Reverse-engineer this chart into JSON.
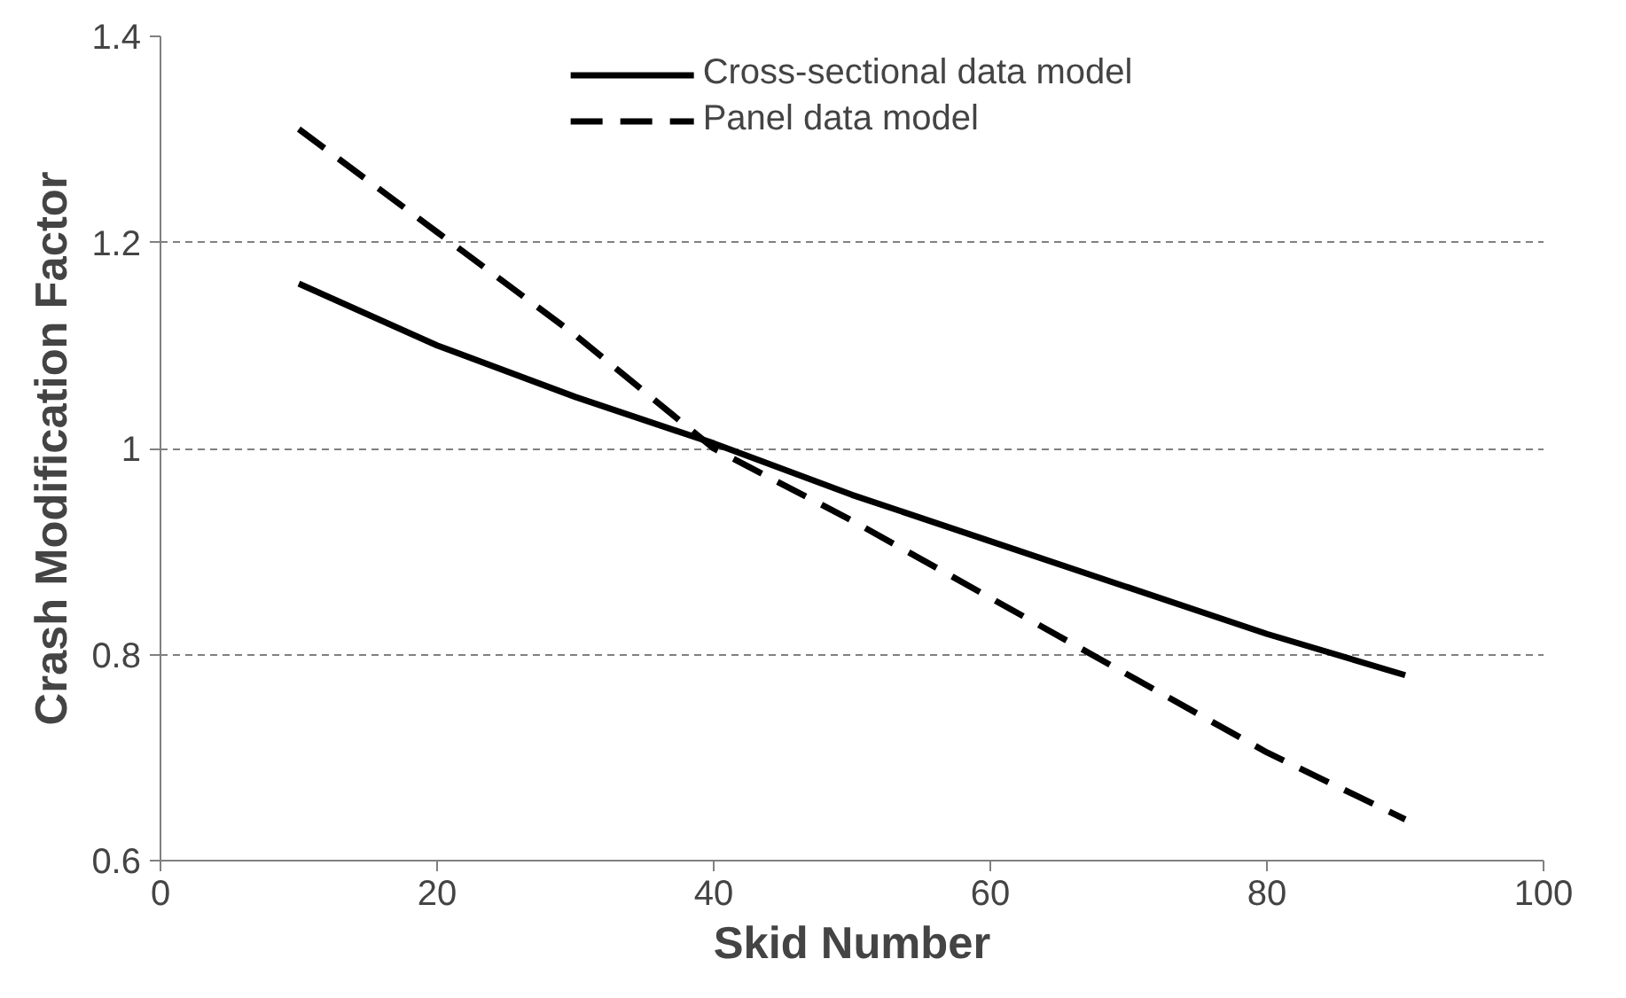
{
  "chart_data": {
    "type": "line",
    "xlabel": "Skid Number",
    "ylabel": "Crash Modification Factor",
    "x": [
      10,
      20,
      30,
      40,
      50,
      60,
      70,
      80,
      90
    ],
    "series": [
      {
        "name": "Cross-sectional data model",
        "color": "#000000",
        "line_style": "solid",
        "values": [
          1.16,
          1.1,
          1.05,
          1.005,
          0.955,
          0.91,
          0.865,
          0.82,
          0.78
        ]
      },
      {
        "name": "Panel data model",
        "color": "#000000",
        "line_style": "dashed",
        "values": [
          1.31,
          1.21,
          1.11,
          1.0,
          0.93,
          0.855,
          0.78,
          0.705,
          0.64
        ]
      }
    ],
    "xlim": [
      0,
      100
    ],
    "xticks": [
      0,
      20,
      40,
      60,
      80,
      100
    ],
    "ylim": [
      0.6,
      1.4
    ],
    "yticks": [
      0.6,
      0.8,
      1,
      1.2,
      1.4
    ],
    "grid": "y",
    "legend": "top",
    "marker": "none"
  }
}
